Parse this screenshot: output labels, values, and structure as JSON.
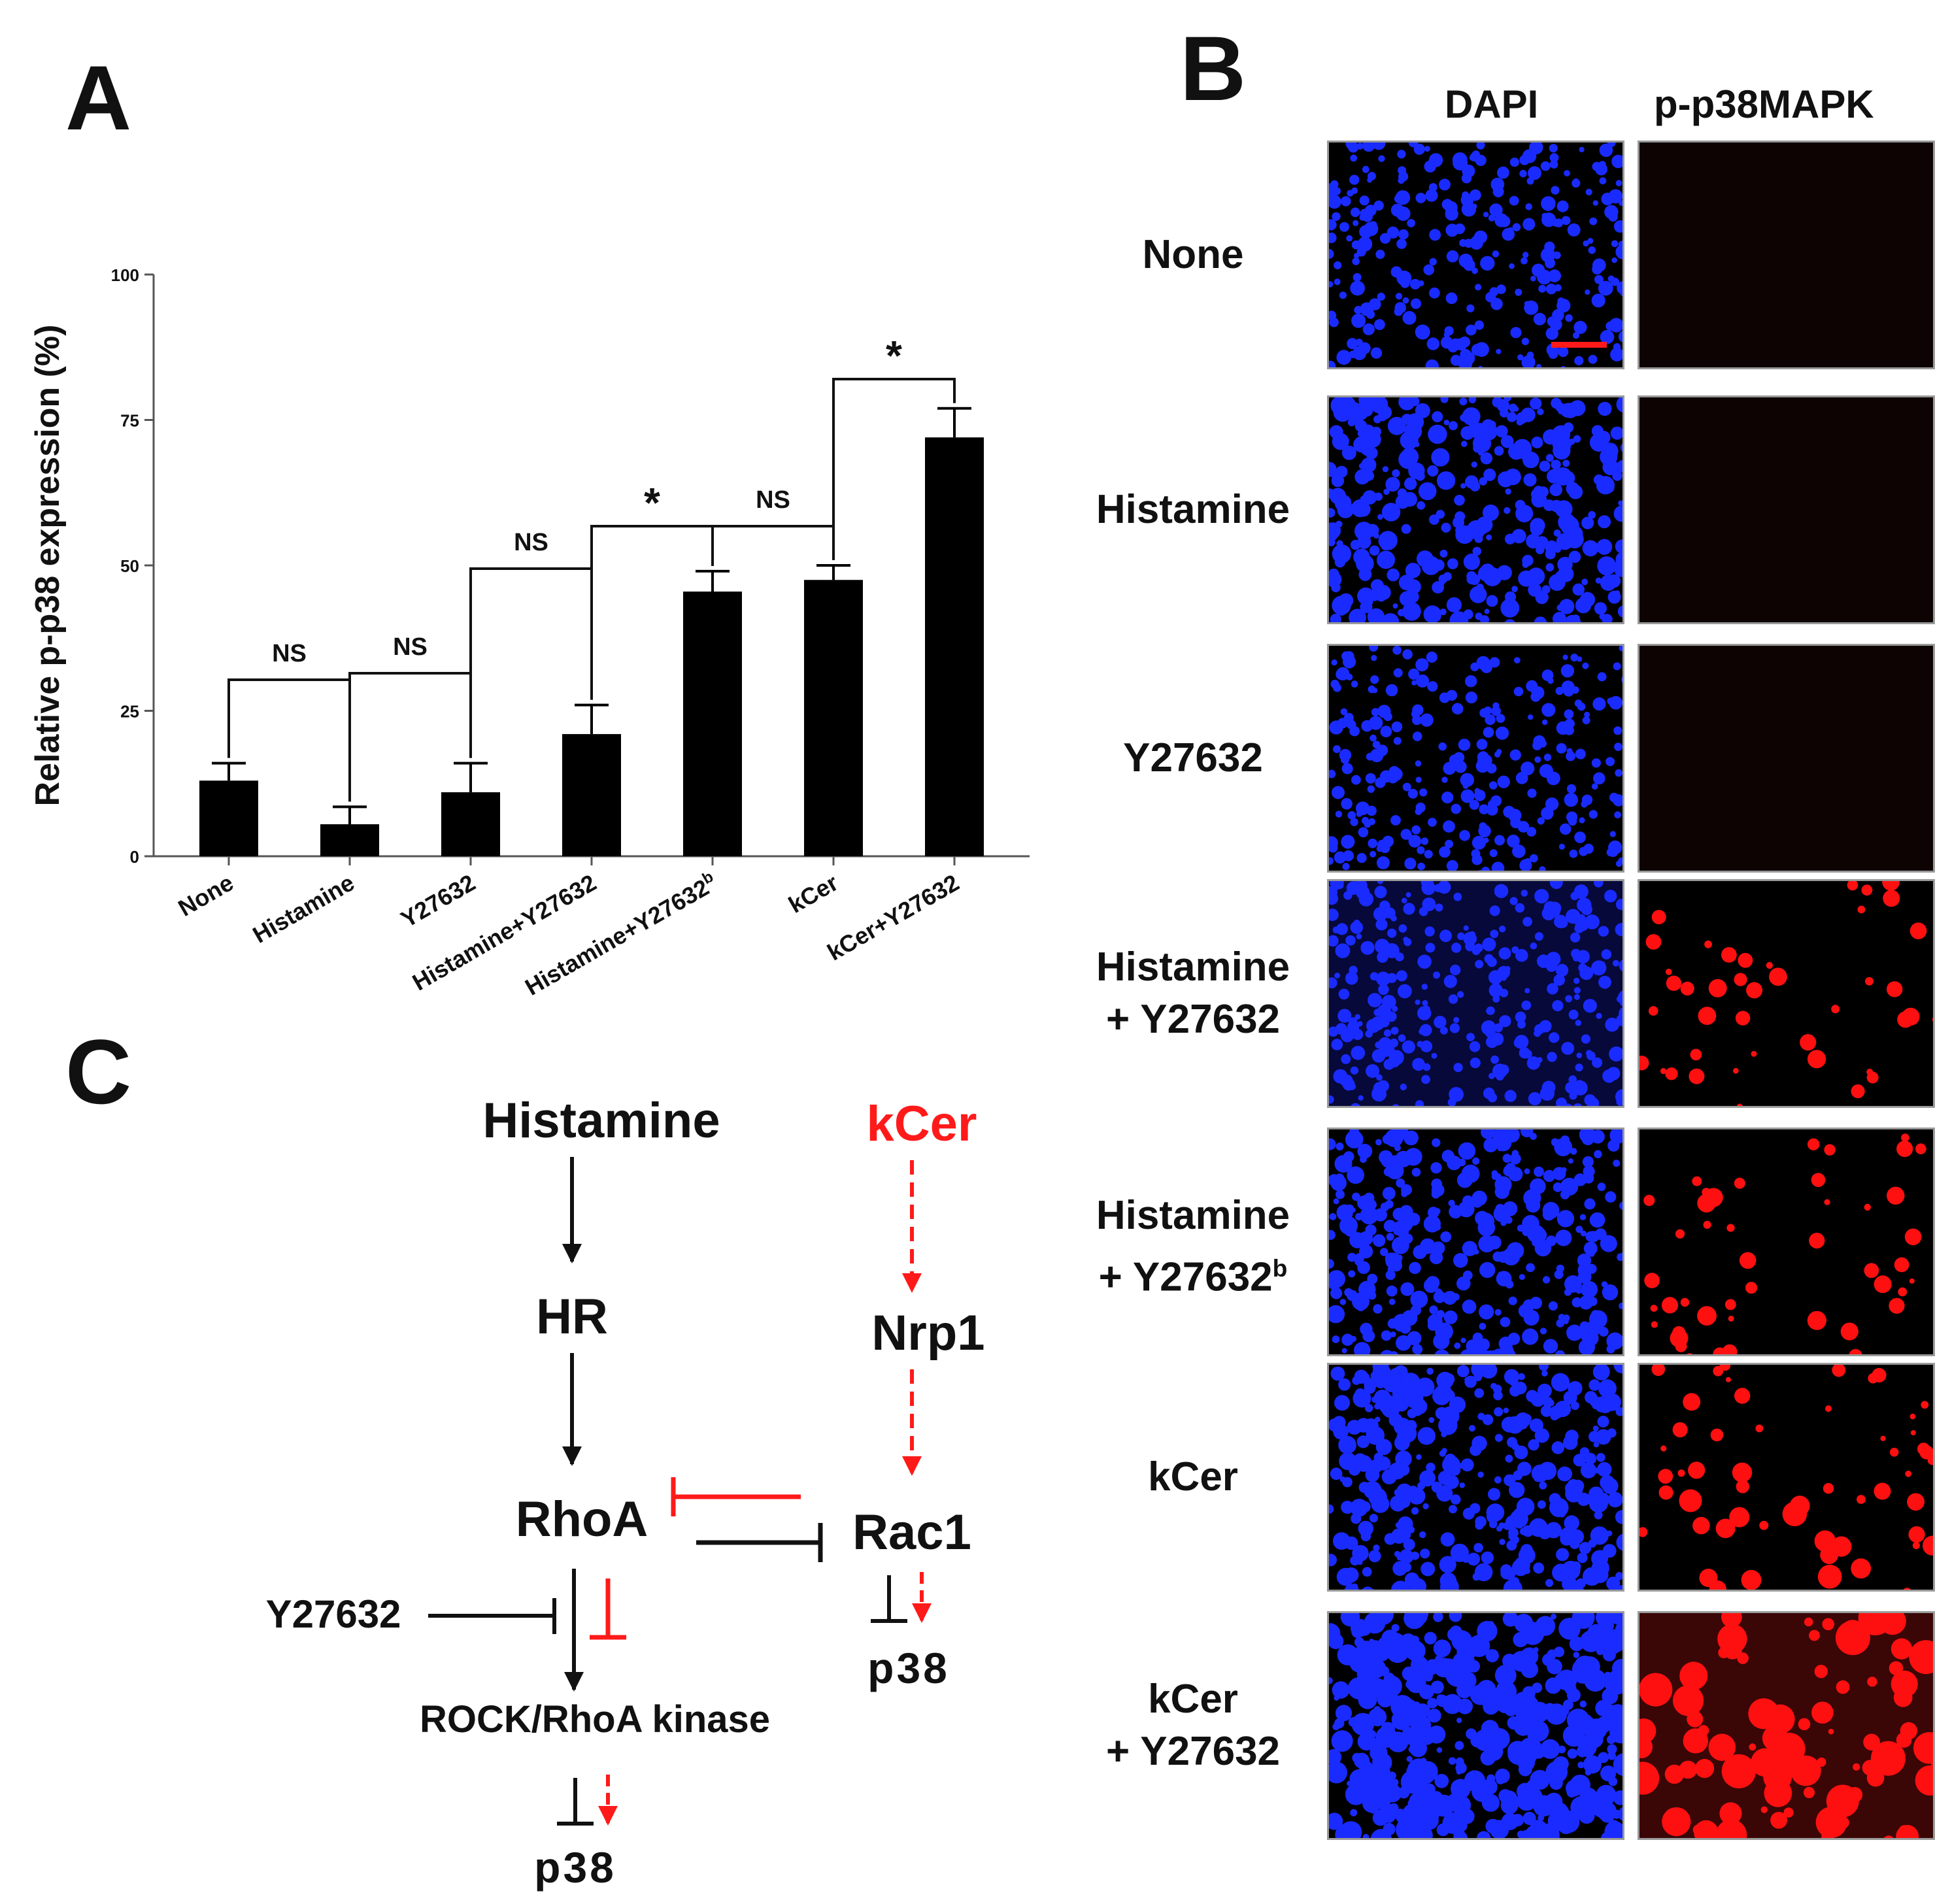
{
  "panels": {
    "a": "A",
    "b": "B",
    "c": "C"
  },
  "chart_data": {
    "type": "bar",
    "title": "",
    "xlabel": "",
    "ylabel": "Relative p-p38 expression (%)",
    "ylim": [
      0,
      100
    ],
    "yticks": [
      "0",
      "25",
      "50",
      "75",
      "100"
    ],
    "grid": false,
    "categories": [
      "None",
      "Histamine",
      "Y27632",
      "Histamine+Y27632",
      "Histamine+Y27632",
      "kCer",
      "kCer+Y27632"
    ],
    "category_superscripts": [
      "",
      "",
      "",
      "",
      "b",
      "",
      ""
    ],
    "values": [
      13,
      5.5,
      11,
      21,
      45.5,
      47.5,
      72
    ],
    "errors": [
      3,
      3,
      5,
      5,
      3.5,
      2.5,
      5
    ],
    "bar_color": "#000000",
    "comparisons": [
      {
        "from": 0,
        "to": 1,
        "label": "NS"
      },
      {
        "from": 1,
        "to": 2,
        "label": "NS"
      },
      {
        "from": 2,
        "to": 3,
        "label": "NS"
      },
      {
        "from": 3,
        "to": 4,
        "label": "*"
      },
      {
        "from": 4,
        "to": 5,
        "label": "NS"
      },
      {
        "from": 5,
        "to": 6,
        "label": "*"
      }
    ]
  },
  "microscopy": {
    "headers": {
      "dapi": "DAPI",
      "pp38": "p-p38MAPK"
    },
    "rows": [
      {
        "lines": [
          "None"
        ],
        "sup": "",
        "dapi_density": 0.35,
        "pp38_level": 0.0
      },
      {
        "lines": [
          "Histamine"
        ],
        "sup": "",
        "dapi_density": 0.55,
        "pp38_level": 0.0
      },
      {
        "lines": [
          "Y27632"
        ],
        "sup": "",
        "dapi_density": 0.3,
        "pp38_level": 0.0
      },
      {
        "lines": [
          "Histamine",
          "+ Y27632"
        ],
        "sup": "",
        "dapi_density": 0.35,
        "pp38_level": 0.3
      },
      {
        "lines": [
          "Histamine",
          "+ Y27632"
        ],
        "sup": "b",
        "dapi_density": 0.5,
        "pp38_level": 0.35
      },
      {
        "lines": [
          "kCer"
        ],
        "sup": "",
        "dapi_density": 0.55,
        "pp38_level": 0.5
      },
      {
        "lines": [
          "kCer",
          "+ Y27632"
        ],
        "sup": "",
        "dapi_density": 0.75,
        "pp38_level": 0.85
      }
    ],
    "colors": {
      "dapi": "#1a2bff",
      "pp38": "#ff1010"
    }
  },
  "pathway": {
    "histamine": "Histamine",
    "kcer": "kCer",
    "hr": "HR",
    "nrp1": "Nrp1",
    "rhoa": "RhoA",
    "rac1": "Rac1",
    "y27632": "Y27632",
    "rock": "ROCK/RhoA kinase",
    "p38_left": "p38",
    "p38_right": "p38",
    "colors": {
      "black": "#111111",
      "red": "#ff1a1a"
    }
  }
}
